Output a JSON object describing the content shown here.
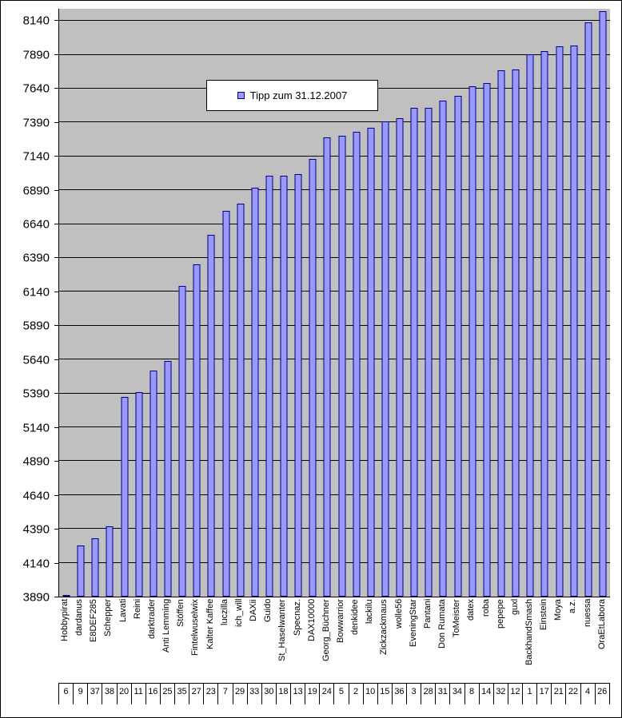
{
  "legend": {
    "label": "Tipp  zum 31.12.2007"
  },
  "colors": {
    "bar_fill": "#9999FF",
    "bar_border": "#000080",
    "plot_background": "#C0C0C0",
    "gridline": "#000000",
    "frame_border": "#000000"
  },
  "chart_data": {
    "type": "bar",
    "title": "",
    "legend_entries": [
      "Tipp  zum 31.12.2007"
    ],
    "legend_position": "inside-top-center",
    "grid": true,
    "ylim": [
      3890,
      8230
    ],
    "y_ticks": [
      3890,
      4140,
      4390,
      4640,
      4890,
      5140,
      5390,
      5640,
      5890,
      6140,
      6390,
      6640,
      6890,
      7140,
      7390,
      7640,
      7890,
      8140
    ],
    "categories": [
      "Hobbypirat",
      "dardanus",
      "E8DEF285",
      "Schepper",
      "Lavati",
      "Reini",
      "darktrader",
      "Anti Lemming",
      "Stöffen",
      "Fintelwuselwix",
      "Kalter Kaffee",
      "luczilla",
      "ich_will",
      "DAXii",
      "Guido",
      "St_Haselwanter",
      "Specnaz.",
      "DAX10000",
      "Georg_Büchner",
      "Bowwarrior",
      "denkidee",
      "lackilu",
      "Zickzackmaus",
      "wolle56",
      "EveningStar",
      "Pantani",
      "Don Rumata",
      "ToMeister",
      "datex",
      "roba",
      "pepepe",
      "guxl",
      "BackhandSmash",
      "Einstein",
      "Moya",
      "a.z.",
      "nuessa",
      "OraEtLabora"
    ],
    "rank_numbers": [
      6,
      9,
      37,
      38,
      20,
      11,
      16,
      25,
      35,
      27,
      23,
      7,
      29,
      33,
      30,
      18,
      13,
      19,
      24,
      5,
      2,
      10,
      15,
      36,
      3,
      28,
      31,
      34,
      8,
      14,
      32,
      12,
      1,
      17,
      21,
      22,
      4,
      26
    ],
    "series": [
      {
        "name": "Tipp  zum 31.12.2007",
        "values": [
          3900,
          4265,
          4320,
          4410,
          5365,
          5400,
          5560,
          5630,
          6185,
          6345,
          6560,
          6740,
          6790,
          6910,
          7000,
          7000,
          7010,
          7120,
          7280,
          7295,
          7320,
          7350,
          7400,
          7420,
          7500,
          7500,
          7550,
          7590,
          7660,
          7680,
          7775,
          7780,
          7895,
          7920,
          7950,
          7960,
          8130,
          8210
        ]
      }
    ]
  }
}
